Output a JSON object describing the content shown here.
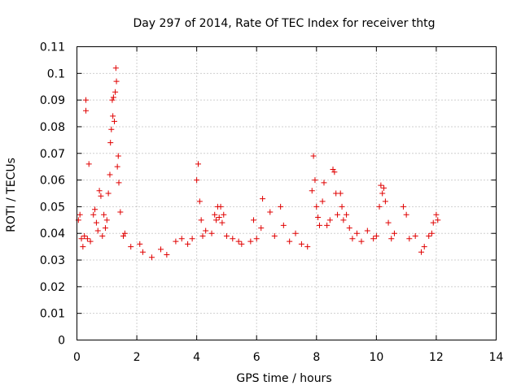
{
  "chart_data": {
    "type": "scatter",
    "title": "Day 297 of 2014, Rate Of TEC Index for receiver thtg",
    "xlabel": "GPS time / hours",
    "ylabel": "ROTI / TECUs",
    "xlim": [
      0,
      14
    ],
    "ylim": [
      0,
      0.11
    ],
    "x_ticks": [
      "0",
      "2",
      "4",
      "6",
      "8",
      "10",
      "12",
      "14"
    ],
    "y_ticks": [
      "0",
      "0.01",
      "0.02",
      "0.03",
      "0.04",
      "0.05",
      "0.06",
      "0.07",
      "0.08",
      "0.09",
      "0.1",
      "0.11"
    ],
    "grid": true,
    "marker": "plus",
    "series_color": "#e00000",
    "series": [
      {
        "name": "ROTI",
        "points": [
          [
            0.05,
            0.045
          ],
          [
            0.1,
            0.047
          ],
          [
            0.15,
            0.038
          ],
          [
            0.2,
            0.035
          ],
          [
            0.25,
            0.039
          ],
          [
            0.3,
            0.09
          ],
          [
            0.3,
            0.086
          ],
          [
            0.35,
            0.038
          ],
          [
            0.4,
            0.066
          ],
          [
            0.45,
            0.037
          ],
          [
            0.55,
            0.047
          ],
          [
            0.6,
            0.049
          ],
          [
            0.65,
            0.044
          ],
          [
            0.7,
            0.041
          ],
          [
            0.75,
            0.056
          ],
          [
            0.8,
            0.054
          ],
          [
            0.85,
            0.039
          ],
          [
            0.9,
            0.047
          ],
          [
            0.95,
            0.042
          ],
          [
            1.0,
            0.045
          ],
          [
            1.05,
            0.055
          ],
          [
            1.1,
            0.062
          ],
          [
            1.12,
            0.074
          ],
          [
            1.15,
            0.079
          ],
          [
            1.18,
            0.09
          ],
          [
            1.2,
            0.084
          ],
          [
            1.22,
            0.091
          ],
          [
            1.25,
            0.082
          ],
          [
            1.28,
            0.093
          ],
          [
            1.3,
            0.102
          ],
          [
            1.32,
            0.097
          ],
          [
            1.35,
            0.065
          ],
          [
            1.38,
            0.069
          ],
          [
            1.4,
            0.059
          ],
          [
            1.45,
            0.048
          ],
          [
            1.55,
            0.039
          ],
          [
            1.6,
            0.04
          ],
          [
            1.8,
            0.035
          ],
          [
            2.1,
            0.036
          ],
          [
            2.2,
            0.033
          ],
          [
            2.5,
            0.031
          ],
          [
            2.8,
            0.034
          ],
          [
            3.0,
            0.032
          ],
          [
            3.3,
            0.037
          ],
          [
            3.5,
            0.038
          ],
          [
            3.7,
            0.036
          ],
          [
            3.85,
            0.038
          ],
          [
            4.0,
            0.06
          ],
          [
            4.05,
            0.066
          ],
          [
            4.1,
            0.052
          ],
          [
            4.15,
            0.045
          ],
          [
            4.2,
            0.039
          ],
          [
            4.3,
            0.041
          ],
          [
            4.5,
            0.04
          ],
          [
            4.6,
            0.047
          ],
          [
            4.65,
            0.045
          ],
          [
            4.7,
            0.05
          ],
          [
            4.75,
            0.046
          ],
          [
            4.8,
            0.05
          ],
          [
            4.85,
            0.044
          ],
          [
            4.9,
            0.047
          ],
          [
            5.0,
            0.039
          ],
          [
            5.2,
            0.038
          ],
          [
            5.4,
            0.037
          ],
          [
            5.5,
            0.036
          ],
          [
            5.8,
            0.037
          ],
          [
            5.9,
            0.045
          ],
          [
            6.0,
            0.038
          ],
          [
            6.15,
            0.042
          ],
          [
            6.2,
            0.053
          ],
          [
            6.45,
            0.048
          ],
          [
            6.6,
            0.039
          ],
          [
            6.8,
            0.05
          ],
          [
            6.9,
            0.043
          ],
          [
            7.1,
            0.037
          ],
          [
            7.3,
            0.04
          ],
          [
            7.5,
            0.036
          ],
          [
            7.7,
            0.035
          ],
          [
            7.85,
            0.056
          ],
          [
            7.9,
            0.069
          ],
          [
            7.95,
            0.06
          ],
          [
            8.0,
            0.05
          ],
          [
            8.05,
            0.046
          ],
          [
            8.1,
            0.043
          ],
          [
            8.2,
            0.052
          ],
          [
            8.25,
            0.059
          ],
          [
            8.35,
            0.043
          ],
          [
            8.45,
            0.045
          ],
          [
            8.55,
            0.064
          ],
          [
            8.6,
            0.063
          ],
          [
            8.65,
            0.055
          ],
          [
            8.7,
            0.047
          ],
          [
            8.8,
            0.055
          ],
          [
            8.85,
            0.05
          ],
          [
            8.9,
            0.045
          ],
          [
            9.0,
            0.047
          ],
          [
            9.1,
            0.042
          ],
          [
            9.2,
            0.038
          ],
          [
            9.35,
            0.04
          ],
          [
            9.5,
            0.037
          ],
          [
            9.7,
            0.041
          ],
          [
            9.9,
            0.038
          ],
          [
            10.0,
            0.039
          ],
          [
            10.1,
            0.05
          ],
          [
            10.15,
            0.058
          ],
          [
            10.2,
            0.055
          ],
          [
            10.25,
            0.057
          ],
          [
            10.3,
            0.052
          ],
          [
            10.4,
            0.044
          ],
          [
            10.5,
            0.038
          ],
          [
            10.6,
            0.04
          ],
          [
            10.9,
            0.05
          ],
          [
            11.0,
            0.047
          ],
          [
            11.1,
            0.038
          ],
          [
            11.3,
            0.039
          ],
          [
            11.5,
            0.033
          ],
          [
            11.6,
            0.035
          ],
          [
            11.75,
            0.039
          ],
          [
            11.85,
            0.04
          ],
          [
            11.9,
            0.044
          ],
          [
            12.0,
            0.047
          ],
          [
            12.05,
            0.045
          ]
        ]
      }
    ]
  }
}
